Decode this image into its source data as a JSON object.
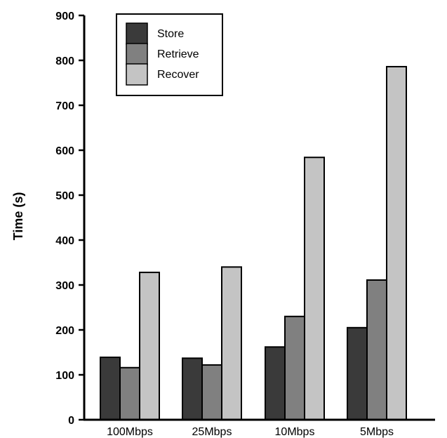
{
  "chart_data": {
    "type": "bar",
    "title": "",
    "xlabel": "",
    "ylabel": "Time (s)",
    "ylim": [
      0,
      900
    ],
    "yticks": [
      0,
      100,
      200,
      300,
      400,
      500,
      600,
      700,
      800,
      900
    ],
    "grid": false,
    "legend_position": "top-left",
    "categories": [
      "100Mbps",
      "25Mbps",
      "10Mbps",
      "5Mbps"
    ],
    "series": [
      {
        "name": "Store",
        "color": "#3a3a3a",
        "values": [
          139,
          137,
          162,
          205
        ]
      },
      {
        "name": "Retrieve",
        "color": "#808080",
        "values": [
          116,
          122,
          230,
          311
        ]
      },
      {
        "name": "Recover",
        "color": "#c4c4c4",
        "values": [
          328,
          340,
          584,
          786
        ]
      }
    ]
  }
}
